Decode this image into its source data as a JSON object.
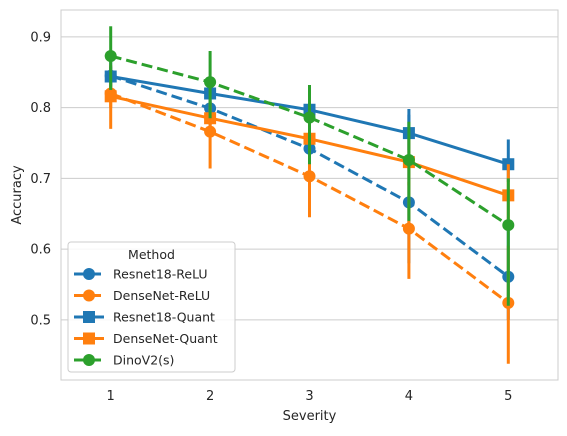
{
  "chart_data": {
    "type": "line",
    "xlabel": "Severity",
    "ylabel": "Accuracy",
    "x": [
      1,
      2,
      3,
      4,
      5
    ],
    "x_ticks": [
      "1",
      "2",
      "3",
      "4",
      "5"
    ],
    "xlim": [
      0.5,
      5.5
    ],
    "ylim": [
      0.415,
      0.938
    ],
    "y_ticks": [
      "0.5",
      "0.6",
      "0.7",
      "0.8",
      "0.9"
    ],
    "y_tick_values": [
      0.5,
      0.6,
      0.7,
      0.8,
      0.9
    ],
    "grid": true,
    "legend": {
      "title": "Method",
      "position": "lower-left"
    },
    "series": [
      {
        "name": "Resnet18-ReLU",
        "color": "#1f77b4",
        "linestyle": "dashed",
        "marker": "circle",
        "values": [
          0.845,
          0.799,
          0.742,
          0.666,
          0.561
        ],
        "error_low": [
          0.82,
          0.775,
          0.715,
          0.58,
          0.5
        ],
        "error_high": [
          0.87,
          0.825,
          0.77,
          0.798,
          0.63
        ]
      },
      {
        "name": "DenseNet-ReLU",
        "color": "#ff7f0e",
        "linestyle": "dashed",
        "marker": "circle",
        "values": [
          0.82,
          0.766,
          0.703,
          0.629,
          0.524
        ],
        "error_low": [
          0.77,
          0.714,
          0.645,
          0.558,
          0.438
        ],
        "error_high": [
          0.86,
          0.81,
          0.765,
          0.695,
          0.605
        ]
      },
      {
        "name": "Resnet18-Quant",
        "color": "#1f77b4",
        "linestyle": "solid",
        "marker": "square",
        "values": [
          0.844,
          0.82,
          0.797,
          0.764,
          0.72
        ],
        "error_low": [
          0.83,
          0.8,
          0.775,
          0.74,
          0.695
        ],
        "error_high": [
          0.858,
          0.84,
          0.82,
          0.79,
          0.755
        ]
      },
      {
        "name": "DenseNet-Quant",
        "color": "#ff7f0e",
        "linestyle": "solid",
        "marker": "square",
        "values": [
          0.816,
          0.785,
          0.756,
          0.723,
          0.676
        ],
        "error_low": [
          0.8,
          0.762,
          0.73,
          0.69,
          0.63
        ],
        "error_high": [
          0.835,
          0.808,
          0.78,
          0.755,
          0.72
        ]
      },
      {
        "name": "DinoV2(s)",
        "color": "#2ca02c",
        "linestyle": "dashed",
        "marker": "circle",
        "values": [
          0.873,
          0.836,
          0.786,
          0.726,
          0.634
        ],
        "error_low": [
          0.825,
          0.785,
          0.72,
          0.64,
          0.52
        ],
        "error_high": [
          0.915,
          0.88,
          0.832,
          0.78,
          0.7
        ]
      }
    ]
  }
}
